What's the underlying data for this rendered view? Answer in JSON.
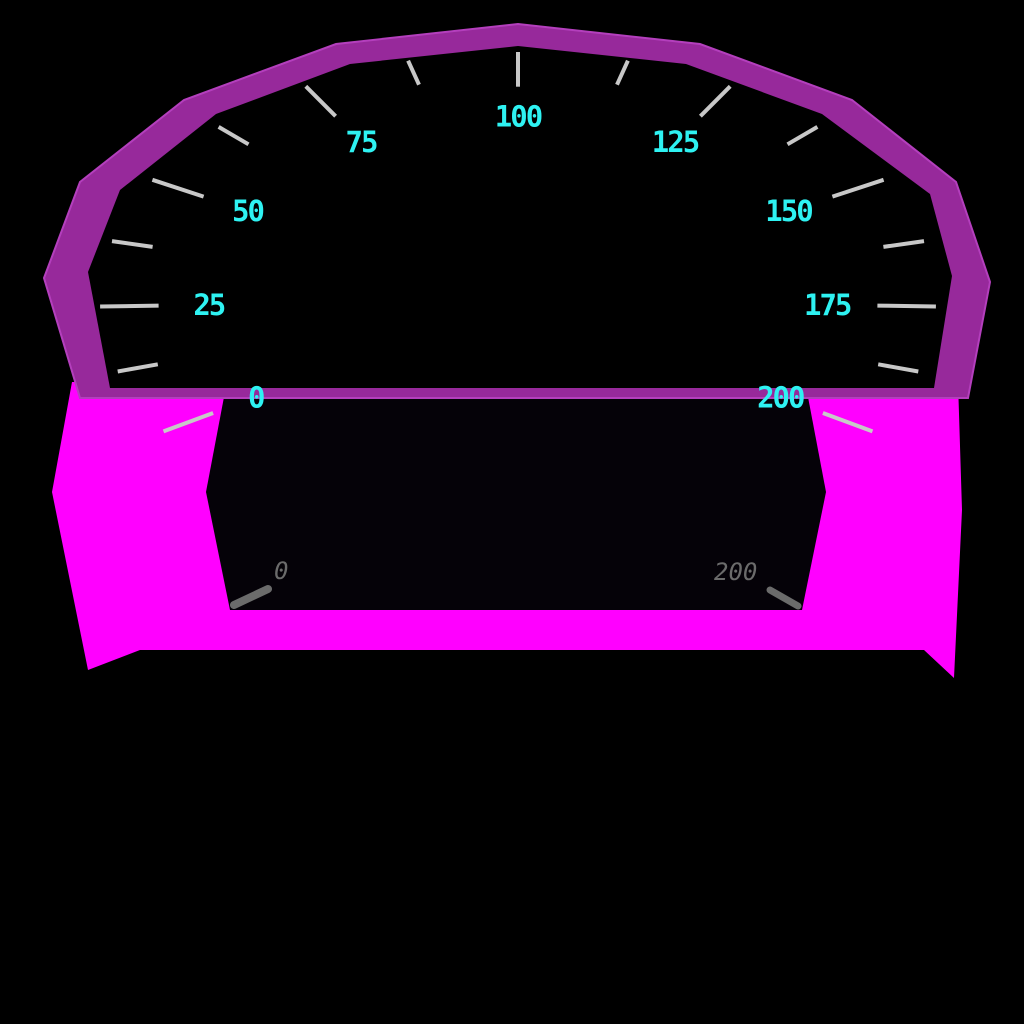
{
  "speedometer": {
    "labels": [
      {
        "value": 0,
        "text": "0"
      },
      {
        "value": 25,
        "text": "25"
      },
      {
        "value": 50,
        "text": "50"
      },
      {
        "value": 75,
        "text": "75"
      },
      {
        "value": 100,
        "text": "100"
      },
      {
        "value": 125,
        "text": "125"
      },
      {
        "value": 150,
        "text": "150"
      },
      {
        "value": 175,
        "text": "175"
      },
      {
        "value": 200,
        "text": "200"
      }
    ],
    "major_step": 25,
    "minor_step": 12.5,
    "range": [
      0,
      200
    ]
  },
  "lower_panel": {
    "min_text": "0",
    "max_text": "200"
  },
  "colors": {
    "rim": "#97299b",
    "rim_edge": "#b43fbd",
    "face": "#000000",
    "ticks": "#c8c8c8",
    "numerals": "#2ef2f2",
    "base": "#ff00ff",
    "inner_panel": "#050208",
    "sketch": "#6b6b6b"
  }
}
